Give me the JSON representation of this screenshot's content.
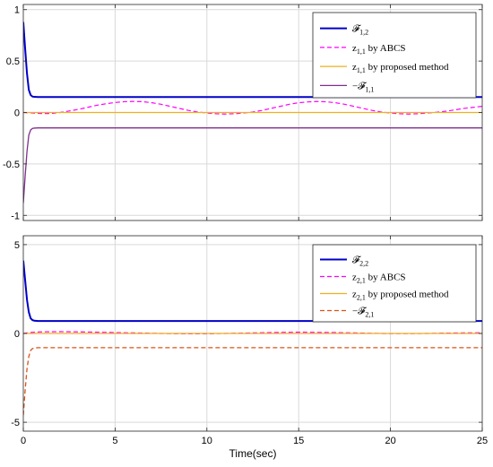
{
  "chart_data": [
    {
      "type": "line",
      "xlabel": "",
      "ylabel": "",
      "xlim": [
        0,
        25
      ],
      "ylim": [
        -1.05,
        1.05
      ],
      "xticks": [
        0,
        5,
        10,
        15,
        20,
        25
      ],
      "xtick_labels": [
        "0",
        "5",
        "10",
        "15",
        "20",
        "25"
      ],
      "yticks": [
        -1,
        -0.5,
        0,
        0.5,
        1
      ],
      "ytick_labels": [
        "-1",
        "-0.5",
        "0",
        "0.5",
        "1"
      ],
      "grid": true,
      "legend_position": "top-right",
      "legend": [
        {
          "main": "𝓕",
          "sub": "1,2",
          "suffix": ""
        },
        {
          "main": "z",
          "sub": "1,1",
          "suffix": " by ABCS"
        },
        {
          "main": "z",
          "sub": "1,1",
          "suffix": " by proposed method"
        },
        {
          "main": "−𝓕",
          "sub": "1,1",
          "suffix": ""
        }
      ],
      "series": [
        {
          "color": "#0000c8",
          "style": "solid",
          "width": 2,
          "x": [
            0,
            0.1,
            0.2,
            0.3,
            0.4,
            0.5,
            0.6,
            0.8,
            1,
            2,
            5,
            10,
            15,
            20,
            25
          ],
          "y": [
            0.88,
            0.62,
            0.38,
            0.22,
            0.17,
            0.155,
            0.152,
            0.15,
            0.15,
            0.15,
            0.15,
            0.15,
            0.15,
            0.15,
            0.15
          ]
        },
        {
          "color": "#ff00ff",
          "style": "dashed",
          "width": 1.2,
          "x": [
            0,
            0.5,
            1,
            1.5,
            2,
            2.5,
            3,
            3.5,
            4,
            4.5,
            5,
            5.5,
            6,
            6.5,
            7,
            7.5,
            8,
            8.5,
            9,
            9.5,
            10,
            10.5,
            11,
            11.5,
            12,
            12.5,
            13,
            13.5,
            14,
            14.5,
            15,
            15.5,
            16,
            16.5,
            17,
            17.5,
            18,
            18.5,
            19,
            19.5,
            20,
            20.5,
            21,
            21.5,
            22,
            22.5,
            23,
            23.5,
            24,
            24.5,
            25
          ],
          "y": [
            0.0,
            -0.005,
            -0.01,
            -0.01,
            0.0,
            0.015,
            0.03,
            0.05,
            0.07,
            0.085,
            0.097,
            0.105,
            0.108,
            0.105,
            0.095,
            0.08,
            0.06,
            0.04,
            0.02,
            0.005,
            -0.005,
            -0.012,
            -0.015,
            -0.012,
            -0.005,
            0.005,
            0.02,
            0.04,
            0.06,
            0.08,
            0.095,
            0.103,
            0.107,
            0.104,
            0.095,
            0.08,
            0.06,
            0.04,
            0.02,
            0.005,
            -0.005,
            -0.012,
            -0.015,
            -0.012,
            -0.005,
            0.002,
            0.012,
            0.025,
            0.04,
            0.05,
            0.06
          ]
        },
        {
          "color": "#edb120",
          "style": "solid",
          "width": 1.3,
          "x": [
            0,
            25
          ],
          "y": [
            0,
            0
          ]
        },
        {
          "color": "#7e2f8e",
          "style": "solid",
          "width": 1.3,
          "x": [
            0,
            0.1,
            0.2,
            0.3,
            0.4,
            0.5,
            0.6,
            0.8,
            1,
            2,
            5,
            10,
            15,
            20,
            25
          ],
          "y": [
            -0.88,
            -0.62,
            -0.38,
            -0.22,
            -0.17,
            -0.155,
            -0.152,
            -0.15,
            -0.15,
            -0.15,
            -0.15,
            -0.15,
            -0.15,
            -0.15,
            -0.15
          ]
        }
      ]
    },
    {
      "type": "line",
      "xlabel": "Time(sec)",
      "ylabel": "",
      "xlim": [
        0,
        25
      ],
      "ylim": [
        -5.5,
        5.5
      ],
      "xticks": [
        0,
        5,
        10,
        15,
        20,
        25
      ],
      "xtick_labels": [
        "0",
        "5",
        "10",
        "15",
        "20",
        "25"
      ],
      "yticks": [
        -5,
        0,
        5
      ],
      "ytick_labels": [
        "-5",
        "0",
        "5"
      ],
      "grid": true,
      "legend_position": "top-right",
      "legend": [
        {
          "main": "𝓕",
          "sub": "2,2",
          "suffix": ""
        },
        {
          "main": "z",
          "sub": "2,1",
          "suffix": " by ABCS"
        },
        {
          "main": "z",
          "sub": "2,1",
          "suffix": " by proposed method"
        },
        {
          "main": "−𝓕",
          "sub": "2,1",
          "suffix": ""
        }
      ],
      "series": [
        {
          "color": "#0000c8",
          "style": "solid",
          "width": 2,
          "x": [
            0,
            0.1,
            0.2,
            0.3,
            0.4,
            0.5,
            0.6,
            0.8,
            1,
            2,
            5,
            10,
            15,
            20,
            25
          ],
          "y": [
            4.1,
            3.0,
            1.9,
            1.2,
            0.85,
            0.75,
            0.72,
            0.7,
            0.7,
            0.7,
            0.7,
            0.7,
            0.7,
            0.7,
            0.7
          ]
        },
        {
          "color": "#ff00ff",
          "style": "dashed",
          "width": 1.2,
          "x": [
            0,
            0.3,
            0.6,
            1,
            2,
            3,
            4,
            5,
            6,
            7,
            8,
            9,
            10,
            11,
            12,
            13,
            14,
            15,
            16,
            17,
            18,
            19,
            20,
            21,
            22,
            23,
            24,
            25
          ],
          "y": [
            0.0,
            0.04,
            0.07,
            0.09,
            0.1,
            0.09,
            0.07,
            0.05,
            0.03,
            0.01,
            -0.01,
            -0.02,
            -0.02,
            0.0,
            0.02,
            0.04,
            0.06,
            0.07,
            0.06,
            0.05,
            0.03,
            0.01,
            -0.01,
            -0.01,
            0.0,
            0.02,
            0.03,
            0.04
          ]
        },
        {
          "color": "#edb120",
          "style": "solid",
          "width": 1.3,
          "x": [
            0,
            25
          ],
          "y": [
            0,
            0
          ]
        },
        {
          "color": "#d95319",
          "style": "dashed",
          "width": 1.3,
          "x": [
            0,
            0.1,
            0.2,
            0.3,
            0.4,
            0.5,
            0.6,
            0.8,
            1,
            2,
            5,
            10,
            15,
            20,
            25
          ],
          "y": [
            -4.6,
            -3.2,
            -2.0,
            -1.3,
            -0.95,
            -0.85,
            -0.82,
            -0.8,
            -0.8,
            -0.8,
            -0.8,
            -0.8,
            -0.8,
            -0.8,
            -0.8
          ]
        }
      ]
    }
  ]
}
